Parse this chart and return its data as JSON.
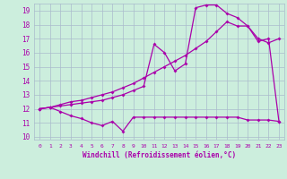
{
  "xlabel": "Windchill (Refroidissement éolien,°C)",
  "bg_color": "#cceedd",
  "grid_color": "#aabbcc",
  "line_color": "#aa00aa",
  "xlim": [
    -0.5,
    23.5
  ],
  "ylim": [
    9.8,
    19.5
  ],
  "xticks": [
    0,
    1,
    2,
    3,
    4,
    5,
    6,
    7,
    8,
    9,
    10,
    11,
    12,
    13,
    14,
    15,
    16,
    17,
    18,
    19,
    20,
    21,
    22,
    23
  ],
  "yticks": [
    10,
    11,
    12,
    13,
    14,
    15,
    16,
    17,
    18,
    19
  ],
  "line1_x": [
    0,
    1,
    2,
    3,
    4,
    5,
    6,
    7,
    8,
    9,
    10,
    11,
    12,
    13,
    14,
    15,
    16,
    17,
    18,
    19,
    20,
    21,
    22,
    23
  ],
  "line1_y": [
    12.0,
    12.1,
    11.8,
    11.5,
    11.3,
    11.0,
    10.8,
    11.1,
    10.4,
    11.4,
    11.4,
    11.4,
    11.4,
    11.4,
    11.4,
    11.4,
    11.4,
    11.4,
    11.4,
    11.4,
    11.2,
    11.2,
    11.2,
    11.1
  ],
  "line2_x": [
    0,
    1,
    2,
    3,
    4,
    5,
    6,
    7,
    8,
    9,
    10,
    11,
    12,
    13,
    14,
    15,
    16,
    17,
    18,
    19,
    20,
    21,
    22,
    23
  ],
  "line2_y": [
    12.0,
    12.1,
    12.2,
    12.3,
    12.4,
    12.5,
    12.6,
    12.8,
    13.0,
    13.3,
    13.6,
    16.6,
    16.0,
    14.7,
    15.2,
    19.2,
    19.4,
    19.4,
    18.8,
    18.5,
    17.9,
    17.0,
    16.7,
    17.0
  ],
  "line3_x": [
    0,
    1,
    2,
    3,
    4,
    5,
    6,
    7,
    8,
    9,
    10,
    11,
    12,
    13,
    14,
    15,
    16,
    17,
    18,
    19,
    20,
    21,
    22,
    23
  ],
  "line3_y": [
    12.0,
    12.1,
    12.3,
    12.5,
    12.6,
    12.8,
    13.0,
    13.2,
    13.5,
    13.8,
    14.2,
    14.6,
    15.0,
    15.4,
    15.8,
    16.3,
    16.8,
    17.5,
    18.2,
    17.9,
    17.9,
    16.8,
    17.0,
    11.1
  ]
}
